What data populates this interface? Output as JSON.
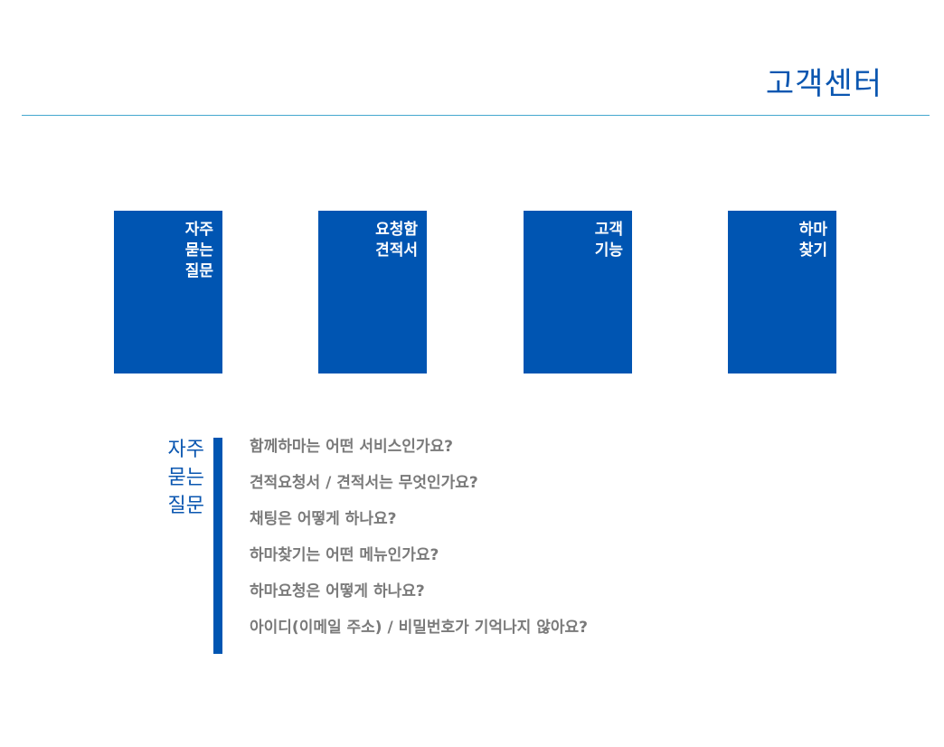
{
  "header": {
    "title": "고객센터"
  },
  "tiles": [
    {
      "lines": [
        "자주",
        "묻는",
        "질문"
      ]
    },
    {
      "lines": [
        "요청함",
        "견적서"
      ]
    },
    {
      "lines": [
        "고객",
        "기능"
      ]
    },
    {
      "lines": [
        "하마",
        "찾기"
      ]
    }
  ],
  "faq": {
    "heading_lines": [
      "자주",
      "묻는",
      "질문"
    ],
    "questions": [
      "함께하마는 어떤 서비스인가요?",
      "견적요청서 / 견적서는 무엇인가요?",
      "채팅은 어떻게 하나요?",
      "하마찾기는 어떤 메뉴인가요?",
      "하마요청은 어떻게 하나요?",
      "아이디(이메일 주소) / 비밀번호가 기억나지 않아요?"
    ]
  },
  "colors": {
    "brand_blue": "#0055b2",
    "title_blue": "#0a56b0",
    "rule_cyan": "#45a8cf",
    "question_gray": "#7a7a7a"
  }
}
